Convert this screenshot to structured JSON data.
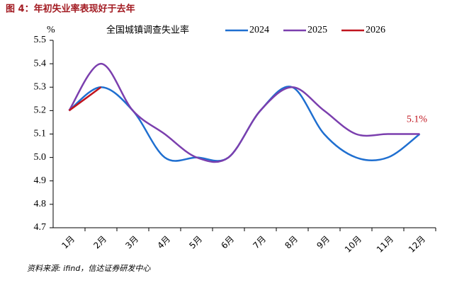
{
  "chart_data": {
    "type": "line",
    "title": "图 4：年初失业率表现好于去年",
    "y_unit": "%",
    "legend_title": "全国城镇调查失业率",
    "categories": [
      "1月",
      "2月",
      "3月",
      "4月",
      "5月",
      "6月",
      "7月",
      "8月",
      "9月",
      "10月",
      "11月",
      "12月"
    ],
    "series": [
      {
        "name": "2024",
        "color": "#1f6fd0",
        "values": [
          5.2,
          5.3,
          5.2,
          5.0,
          5.0,
          5.0,
          5.2,
          5.3,
          5.1,
          5.0,
          5.0,
          5.1
        ]
      },
      {
        "name": "2025",
        "color": "#7b3fae",
        "values": [
          5.2,
          5.4,
          5.2,
          5.1,
          5.0,
          5.0,
          5.2,
          5.3,
          5.2,
          5.1,
          5.1,
          5.1
        ]
      },
      {
        "name": "2026",
        "color": "#c0141e",
        "values": [
          5.2,
          5.3,
          null,
          null,
          null,
          null,
          null,
          null,
          null,
          null,
          null,
          null
        ]
      }
    ],
    "ylim": [
      4.7,
      5.5
    ],
    "yticks": [
      4.7,
      4.8,
      4.9,
      {
        "value": 5,
        "label": "5.0"
      },
      5.1,
      5.2,
      5.3,
      5.4,
      5.5
    ],
    "annotation": "5.1%",
    "source": "资料来源: ifind，信达证券研发中心"
  }
}
